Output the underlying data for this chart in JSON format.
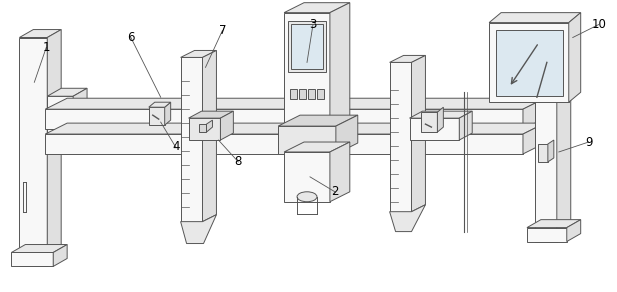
{
  "bg_color": "#ffffff",
  "lc": "#555555",
  "fc_light": "#f8f8f8",
  "fc_mid": "#e8e8e8",
  "fc_dark": "#d8d8d8",
  "fc_side": "#e0e0e0",
  "figsize": [
    6.17,
    2.92
  ],
  "dpi": 100,
  "label_fs": 8.5
}
